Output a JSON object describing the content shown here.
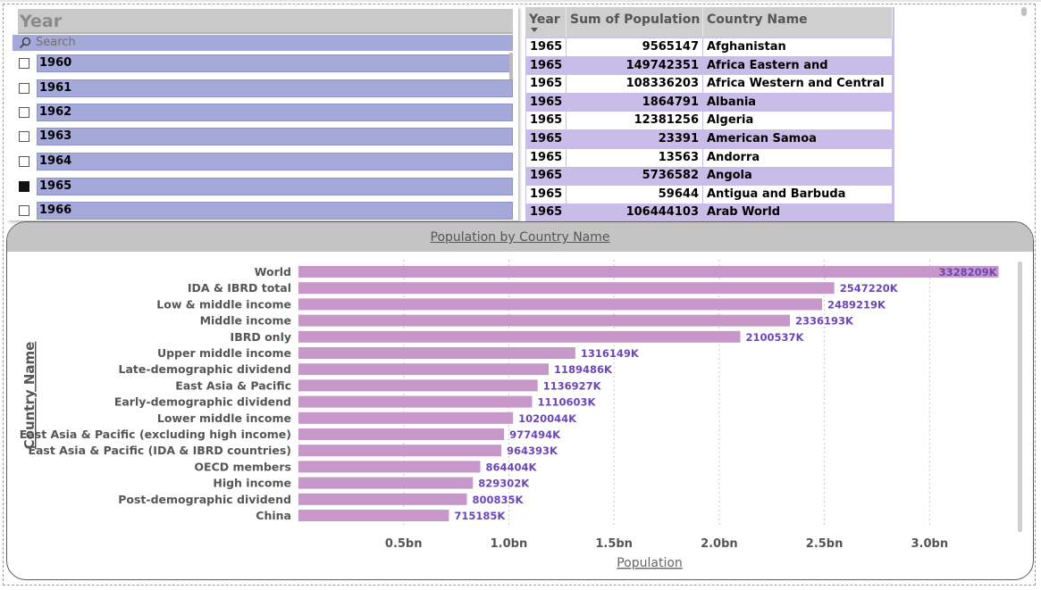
{
  "slicer": {
    "title": "Year",
    "search_placeholder": "Search",
    "items": [
      {
        "label": "1960",
        "checked": false
      },
      {
        "label": "1961",
        "checked": false
      },
      {
        "label": "1962",
        "checked": false
      },
      {
        "label": "1963",
        "checked": false
      },
      {
        "label": "1964",
        "checked": false
      },
      {
        "label": "1965",
        "checked": true
      },
      {
        "label": "1966",
        "checked": false
      }
    ]
  },
  "table": {
    "headers": [
      "Year",
      "Sum of Population",
      "Country Name"
    ],
    "rows": [
      [
        "1965",
        "9565147",
        "Afghanistan"
      ],
      [
        "1965",
        "149742351",
        "Africa Eastern and Southern"
      ],
      [
        "1965",
        "108336203",
        "Africa Western and Central"
      ],
      [
        "1965",
        "1864791",
        "Albania"
      ],
      [
        "1965",
        "12381256",
        "Algeria"
      ],
      [
        "1965",
        "23391",
        "American Samoa"
      ],
      [
        "1965",
        "13563",
        "Andorra"
      ],
      [
        "1965",
        "5736582",
        "Angola"
      ],
      [
        "1965",
        "59644",
        "Antigua and Barbuda"
      ],
      [
        "1965",
        "106444103",
        "Arab World"
      ]
    ]
  },
  "chart": {
    "bar_color": "#c897c9",
    "label_color": "#6b46b8"
  },
  "chart_data": {
    "type": "bar",
    "orientation": "horizontal",
    "title": "Population by Country Name",
    "xlabel": "Population",
    "ylabel": "Country Name",
    "categories": [
      "World",
      "IDA & IBRD total",
      "Low & middle income",
      "Middle income",
      "IBRD only",
      "Upper middle income",
      "Late-demographic dividend",
      "East Asia & Pacific",
      "Early-demographic dividend",
      "Lower middle income",
      "East Asia & Pacific (excluding high income)",
      "East Asia & Pacific (IDA & IBRD countries)",
      "OECD members",
      "High income",
      "Post-demographic dividend",
      "China"
    ],
    "values": [
      3328209000,
      2547220000,
      2489219000,
      2336193000,
      2100537000,
      1316149000,
      1189486000,
      1136927000,
      1110603000,
      1020044000,
      977494000,
      964393000,
      864404000,
      829302000,
      800835000,
      715185000
    ],
    "data_labels": [
      "3328209K",
      "2547220K",
      "2489219K",
      "2336193K",
      "2100537K",
      "1316149K",
      "1189486K",
      "1136927K",
      "1110603K",
      "1020044K",
      "977494K",
      "964393K",
      "864404K",
      "829302K",
      "800835K",
      "715185K"
    ],
    "xticks": [
      500000000,
      1000000000,
      1500000000,
      2000000000,
      2500000000,
      3000000000
    ],
    "xtick_labels": [
      "0.5bn",
      "1.0bn",
      "1.5bn",
      "2.0bn",
      "2.5bn",
      "3.0bn"
    ],
    "xlim": [
      0,
      3330000000
    ],
    "grid": true
  }
}
